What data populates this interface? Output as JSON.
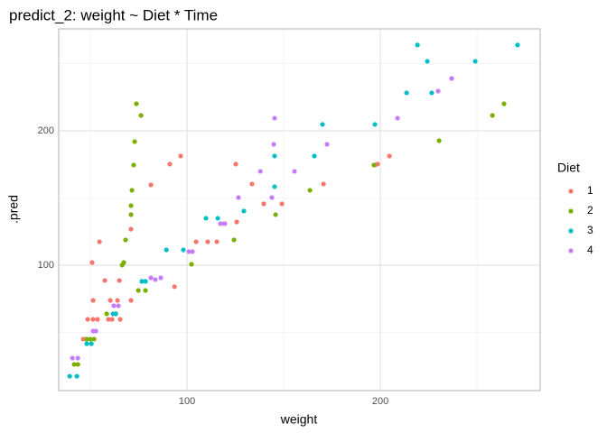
{
  "chart_data": {
    "type": "scatter",
    "title": "predict_2: weight ~ Diet * Time",
    "x_label": "weight",
    "y_label": ".pred",
    "legend_title": "Diet",
    "xlim": [
      33.6,
      282.7
    ],
    "ylim": [
      6.7,
      275.8
    ],
    "xticks": [
      100,
      200
    ],
    "yticks": [
      100,
      200
    ],
    "x_minor_ticks": [
      50,
      150,
      250
    ],
    "y_minor_ticks": [
      50,
      150,
      250
    ],
    "grid": true,
    "series": [
      {
        "name": "1",
        "color": "#F8766D",
        "x": [
          46.3,
          48.6,
          50.9,
          51.4,
          51.4,
          53.7,
          54.7,
          57.5,
          59.3,
          60.3,
          61.2,
          64,
          65,
          65.4,
          71,
          71,
          71,
          81.3,
          91.1,
          93.5,
          96.7,
          104.7,
          110.7,
          115.4,
          119.2,
          125.2,
          125.7,
          133.6,
          139.7,
          149.1,
          170.6,
          197.2,
          198.6,
          204.7
        ],
        "values": [
          45,
          59.7,
          102,
          73.8,
          59.7,
          59.7,
          117.4,
          88.6,
          59.7,
          73.8,
          59.7,
          73.8,
          88.6,
          59.7,
          137.6,
          126.8,
          73.8,
          159.7,
          175.2,
          84,
          181.2,
          117.4,
          117.4,
          117.4,
          130.9,
          175.2,
          132.2,
          160.4,
          145.6,
          145.6,
          160.4,
          174.5,
          175.2,
          181.2
        ]
      },
      {
        "name": "2",
        "color": "#7CAE00",
        "x": [
          41.6,
          43.5,
          48.1,
          50,
          51.9,
          58.4,
          63.1,
          66.4,
          67.3,
          68.2,
          71,
          71,
          71.5,
          72.4,
          72.9,
          73.8,
          76.2,
          74.8,
          78.5,
          102.3,
          124.3,
          145.8,
          163.6,
          196.7,
          230.4,
          258,
          264
        ],
        "values": [
          26.2,
          26.2,
          45,
          45,
          45,
          63.8,
          63.8,
          100,
          102,
          118.8,
          137.6,
          144.3,
          155.7,
          174.5,
          191.9,
          220.1,
          211.4,
          81.2,
          81.2,
          100.7,
          118.8,
          137.6,
          155.7,
          174.5,
          192.6,
          211.4,
          220.1
        ]
      },
      {
        "name": "3",
        "color": "#00BFC4",
        "x": [
          39.3,
          43,
          48.1,
          50.5,
          61.7,
          63.1,
          76.6,
          78.5,
          89.3,
          98.1,
          109.8,
          115.9,
          129.4,
          145.3,
          145.3,
          165.9,
          170.1,
          197.2,
          213.6,
          219.2,
          224.3,
          226.6,
          249.1,
          271
        ],
        "values": [
          17.4,
          17.4,
          41.6,
          41.6,
          63.8,
          63.8,
          88,
          88,
          111.4,
          111.4,
          134.9,
          134.9,
          140.3,
          158.4,
          181.2,
          181.2,
          204.7,
          204.7,
          228.2,
          263.8,
          251.7,
          228.2,
          251.7,
          263.8
        ]
      },
      {
        "name": "4",
        "color": "#C77CFF",
        "x": [
          40.7,
          43.5,
          51.4,
          52.8,
          62.1,
          64.5,
          81.3,
          83.6,
          86.4,
          100.9,
          102.8,
          117.3,
          119.6,
          126.6,
          137.9,
          143.9,
          144.9,
          145.3,
          155.6,
          172.4,
          208.9,
          229.9,
          236.9
        ],
        "values": [
          30.9,
          30.9,
          51,
          51,
          69.8,
          69.8,
          90.6,
          89.3,
          90.6,
          110.1,
          110.1,
          130.9,
          130.9,
          150.3,
          169.8,
          150.3,
          189.9,
          209.4,
          169.8,
          189.9,
          209.4,
          229.5,
          238.9
        ]
      }
    ]
  }
}
